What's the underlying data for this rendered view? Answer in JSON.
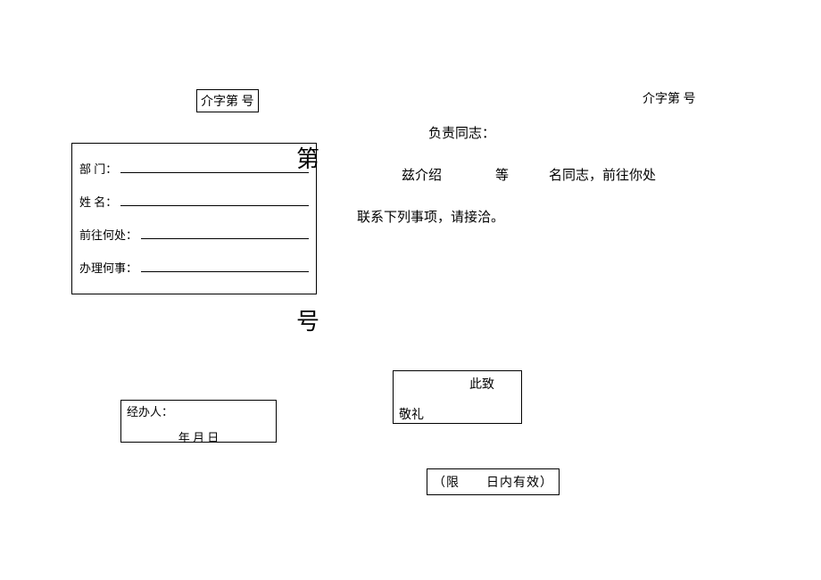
{
  "header": {
    "left_ref": "介字第  号",
    "right_ref": "介字第  号"
  },
  "vertical": {
    "char1": "第",
    "char2": "号"
  },
  "left_form": {
    "dept_label": "部  门：",
    "name_label": "姓  名：",
    "dest_label": "前往何处：",
    "matter_label": "办理何事："
  },
  "right_body": {
    "line1": "负责同志：",
    "line2": "　　兹介绍　　　　等　　　名同志，前往你处",
    "line3": "联系下列事项，请接洽。"
  },
  "handler": {
    "label": "经办人：",
    "date": "年  月  日"
  },
  "closing": {
    "line1": "此致",
    "line2": "敬礼"
  },
  "valid": {
    "text": "（限　　日内有效）"
  }
}
